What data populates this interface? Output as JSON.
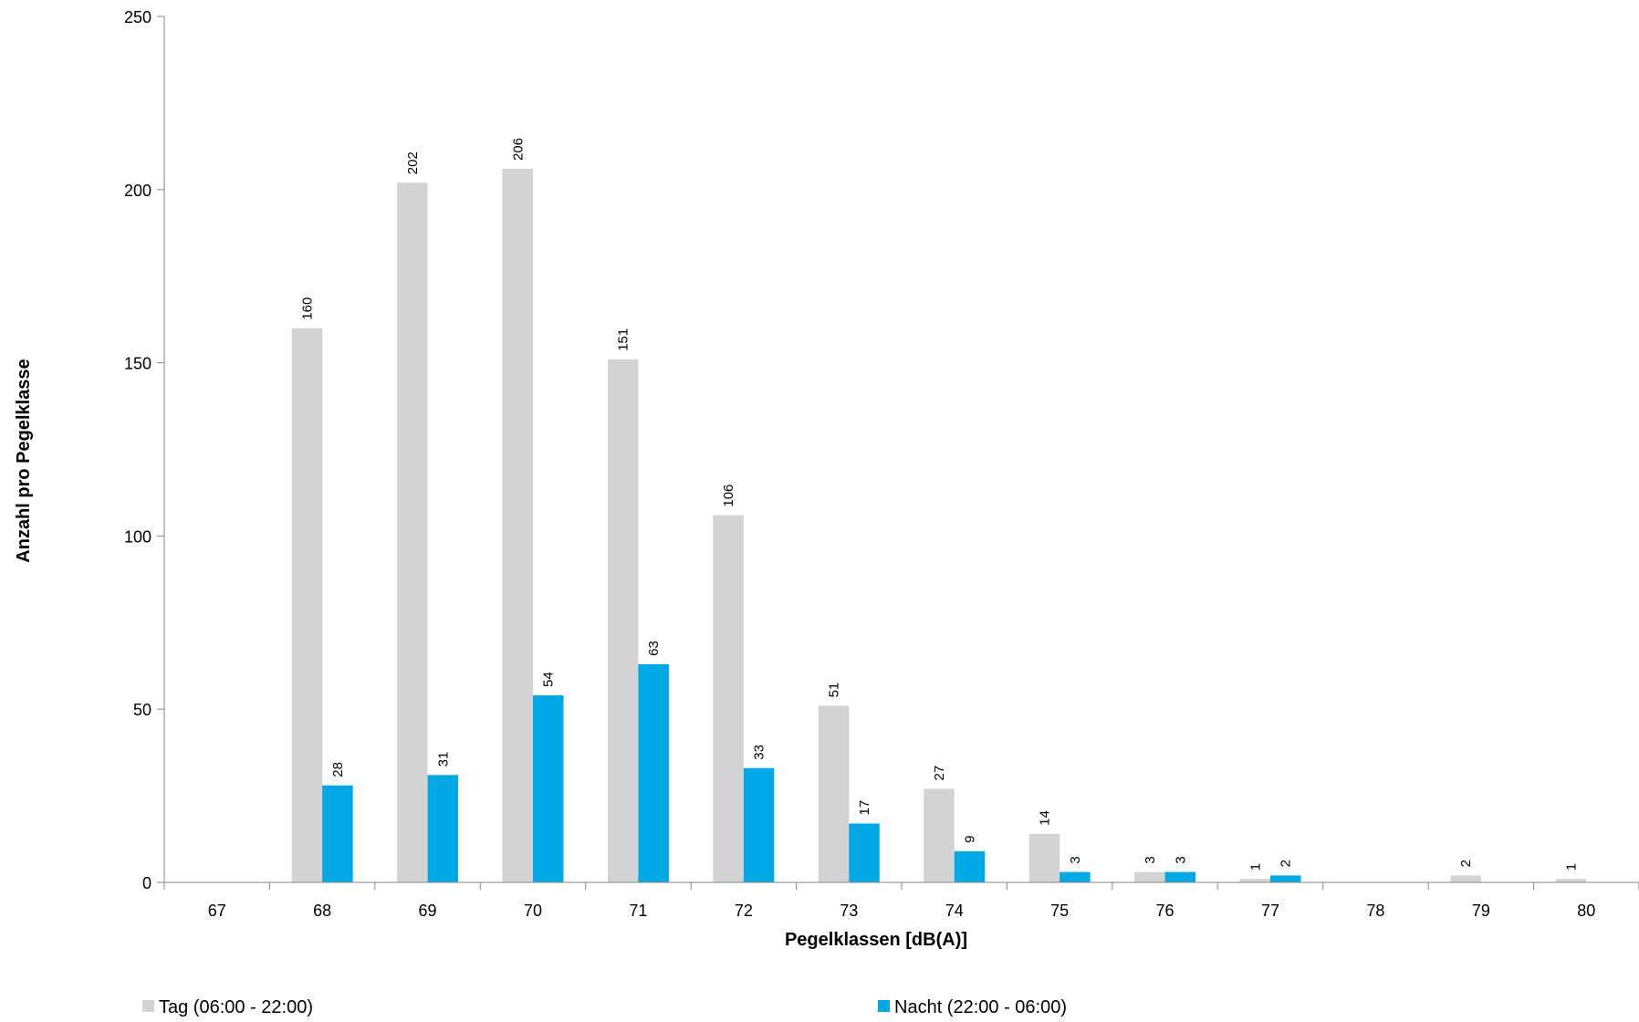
{
  "chart_data": {
    "type": "bar",
    "title": "",
    "xlabel": "Pegelklassen [dB(A)]",
    "ylabel": "Anzahl pro Pegelklasse",
    "categories": [
      "67",
      "68",
      "69",
      "70",
      "71",
      "72",
      "73",
      "74",
      "75",
      "76",
      "77",
      "78",
      "79",
      "80"
    ],
    "series": [
      {
        "name": "Tag (06:00 - 22:00)",
        "color": "#d3d3d3",
        "values": [
          null,
          160,
          202,
          206,
          151,
          106,
          51,
          27,
          14,
          3,
          1,
          null,
          2,
          1
        ],
        "labels": [
          "",
          "160",
          "202",
          "206",
          "151",
          "106",
          "51",
          "27",
          "14",
          "3",
          "1",
          "",
          "2",
          "1"
        ]
      },
      {
        "name": "Nacht (22:00 - 06:00)",
        "color": "#00a8e6",
        "values": [
          null,
          28,
          31,
          54,
          63,
          33,
          17,
          9,
          3,
          3,
          2,
          null,
          null,
          null
        ],
        "labels": [
          "",
          "28",
          "31",
          "54",
          "63",
          "33",
          "17",
          "9",
          "3",
          "3",
          "2",
          "",
          "",
          ""
        ]
      }
    ],
    "ylim": [
      0,
      250
    ],
    "yticks": [
      "0",
      "50",
      "100",
      "150",
      "200",
      "250"
    ],
    "grid": false,
    "legend_position": "bottom"
  }
}
